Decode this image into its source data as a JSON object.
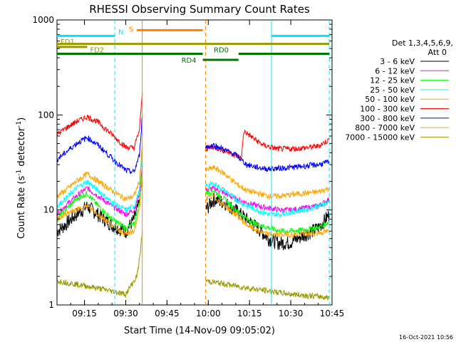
{
  "chart_data": {
    "type": "line",
    "title": "RHESSI Observing Summary Count Rates",
    "xlabel": "Start Time (14-Nov-09 09:05:02)",
    "ylabel": "Count Rate (s",
    "ylabel_sup1": "-1",
    "ylabel_mid": " detector",
    "ylabel_sup2": "-1",
    "ylabel_end": ")",
    "yscale": "log",
    "xlim": [
      "09:05",
      "10:45"
    ],
    "ylim": [
      1,
      1000
    ],
    "x_ticks": [
      "09:15",
      "09:30",
      "09:45",
      "10:00",
      "10:15",
      "10:30",
      "10:45"
    ],
    "y_ticks": [
      "1",
      "10",
      "100",
      "1000"
    ],
    "legend": {
      "position": "right",
      "header_line1": "Det 1,3,4,5,6,9,",
      "header_line2": "Att 0"
    },
    "series": [
      {
        "name": "3 - 6 keV",
        "color": "#000000",
        "x": [
          "09:05",
          "09:08",
          "09:12",
          "09:16",
          "09:20",
          "09:25",
          "09:30",
          "09:33",
          "09:35",
          "09:36",
          "09:59",
          "10:02",
          "10:06",
          "10:10",
          "10:14",
          "10:18",
          "10:22",
          "10:26",
          "10:30",
          "10:35",
          "10:40",
          "10:44"
        ],
        "values": [
          6,
          7,
          9,
          11,
          9,
          7,
          6,
          8,
          12,
          20,
          10,
          13,
          12,
          10,
          8,
          6.5,
          5,
          4.5,
          4.6,
          5.5,
          6.5,
          9
        ]
      },
      {
        "name": "6 - 12 keV",
        "color": "#ff00ff",
        "x": [
          "09:05",
          "09:08",
          "09:12",
          "09:16",
          "09:20",
          "09:25",
          "09:30",
          "09:33",
          "09:35",
          "09:36",
          "09:59",
          "10:02",
          "10:06",
          "10:10",
          "10:14",
          "10:18",
          "10:22",
          "10:26",
          "10:30",
          "10:35",
          "10:40",
          "10:44"
        ],
        "values": [
          9,
          11,
          14,
          17,
          14,
          11,
          9,
          10,
          15,
          30,
          16,
          17,
          15,
          13,
          12,
          11,
          10.5,
          10,
          10,
          10.5,
          11,
          13
        ]
      },
      {
        "name": "12 - 25 keV",
        "color": "#00ff00",
        "x": [
          "09:05",
          "09:08",
          "09:12",
          "09:16",
          "09:20",
          "09:25",
          "09:30",
          "09:33",
          "09:35",
          "09:36",
          "09:59",
          "10:02",
          "10:06",
          "10:10",
          "10:14",
          "10:18",
          "10:22",
          "10:26",
          "10:30",
          "10:35",
          "10:40",
          "10:44"
        ],
        "values": [
          8,
          10,
          13,
          15,
          11,
          8,
          6.5,
          7,
          12,
          28,
          15,
          16,
          13,
          10,
          8,
          7,
          6.5,
          6,
          6,
          6.2,
          6.5,
          7.5
        ]
      },
      {
        "name": "25 - 50 keV",
        "color": "#00ffff",
        "x": [
          "09:05",
          "09:08",
          "09:12",
          "09:16",
          "09:20",
          "09:25",
          "09:30",
          "09:33",
          "09:35",
          "09:36",
          "09:59",
          "10:02",
          "10:06",
          "10:10",
          "10:14",
          "10:18",
          "10:22",
          "10:26",
          "10:30",
          "10:35",
          "10:40",
          "10:44"
        ],
        "values": [
          11,
          13,
          17,
          20,
          16,
          12,
          10,
          11,
          16,
          40,
          18,
          19,
          16,
          13,
          11,
          10,
          9,
          9,
          9.5,
          10,
          11,
          12
        ]
      },
      {
        "name": "50 - 100 keV",
        "color": "#ffa500",
        "x": [
          "09:05",
          "09:08",
          "09:12",
          "09:16",
          "09:20",
          "09:25",
          "09:30",
          "09:33",
          "09:35",
          "09:36",
          "09:59",
          "10:02",
          "10:06",
          "10:10",
          "10:14",
          "10:18",
          "10:22",
          "10:26",
          "10:30",
          "10:35",
          "10:40",
          "10:44"
        ],
        "values": [
          14,
          16,
          20,
          24,
          20,
          16,
          13,
          14,
          20,
          50,
          26,
          28,
          24,
          19,
          16,
          15,
          14,
          14,
          14.5,
          15,
          15.5,
          17
        ]
      },
      {
        "name": "100 - 300 keV",
        "color": "#ff0000",
        "x": [
          "09:05",
          "09:08",
          "09:12",
          "09:16",
          "09:20",
          "09:25",
          "09:30",
          "09:33",
          "09:35",
          "09:36",
          "09:59",
          "10:02",
          "10:06",
          "10:10",
          "10:12",
          "10:13",
          "10:16",
          "10:20",
          "10:25",
          "10:30",
          "10:35",
          "10:40",
          "10:44"
        ],
        "values": [
          62,
          72,
          85,
          96,
          84,
          62,
          46,
          45,
          70,
          170,
          44,
          46,
          42,
          38,
          35,
          68,
          58,
          48,
          44,
          44,
          45,
          47,
          55
        ]
      },
      {
        "name": "300 - 800 keV",
        "color": "#0000ff",
        "x": [
          "09:05",
          "09:08",
          "09:12",
          "09:16",
          "09:20",
          "09:25",
          "09:30",
          "09:33",
          "09:35",
          "09:36",
          "09:59",
          "10:02",
          "10:06",
          "10:10",
          "10:14",
          "10:18",
          "10:22",
          "10:26",
          "10:30",
          "10:35",
          "10:40",
          "10:44"
        ],
        "values": [
          34,
          40,
          50,
          58,
          48,
          35,
          26,
          25,
          38,
          100,
          46,
          48,
          43,
          38,
          30,
          28,
          27,
          27.5,
          28,
          29,
          30,
          32
        ]
      },
      {
        "name": "800 - 7000 keV",
        "color": "#ffa500",
        "x": [
          "09:05",
          "09:08",
          "09:12",
          "09:16",
          "09:20",
          "09:25",
          "09:30",
          "09:33",
          "09:35",
          "09:36",
          "09:59",
          "10:02",
          "10:06",
          "10:10",
          "10:14",
          "10:18",
          "10:22",
          "10:26",
          "10:30",
          "10:35",
          "10:40",
          "10:44"
        ],
        "values": [
          8,
          9,
          10,
          11,
          9,
          7,
          5.5,
          6,
          10,
          25,
          13,
          14,
          11,
          9,
          7,
          6,
          5.5,
          5.5,
          5.5,
          5.6,
          5.7,
          6
        ]
      },
      {
        "name": "7000 - 15000 keV",
        "color": "#999900",
        "x": [
          "09:05",
          "09:20",
          "09:30",
          "09:34",
          "09:35",
          "09:36",
          "09:59",
          "10:15",
          "10:30",
          "10:44"
        ],
        "values": [
          1.8,
          1.5,
          1.3,
          2,
          3,
          6,
          1.8,
          1.5,
          1.3,
          1.2
        ]
      }
    ],
    "annotations": [
      {
        "label": "N",
        "color": "#00e5ff",
        "segments": [
          [
            "09:05",
            "09:26"
          ],
          [
            "10:23",
            "10:44"
          ]
        ],
        "level": 680
      },
      {
        "label": "S",
        "color": "#ff8000",
        "segments": [
          [
            "09:34",
            "09:58"
          ]
        ],
        "level": 780
      },
      {
        "label": "FD1",
        "color": "#999900",
        "segments": [
          [
            "09:05",
            "09:16"
          ]
        ],
        "level": 520
      },
      {
        "label": "FD2",
        "color": "#999900",
        "segments": [
          [
            "09:05",
            "10:44"
          ]
        ],
        "level": 560
      },
      {
        "label": "RD0",
        "color": "#007700",
        "segments": [
          [
            "09:05",
            "09:58"
          ],
          [
            "10:11",
            "10:44"
          ]
        ],
        "level": 440
      },
      {
        "label": "RD4",
        "color": "#007700",
        "segments": [
          [
            "09:58",
            "10:11"
          ]
        ],
        "level": 380
      }
    ],
    "vlines": [
      {
        "x": "09:26",
        "color": "#00e5ff",
        "style": "dashed"
      },
      {
        "x": "09:36",
        "color": "#ff8000",
        "style": "solid"
      },
      {
        "x": "09:59",
        "color": "#ff8000",
        "style": "dashed"
      },
      {
        "x": "10:23",
        "color": "#00e5ff",
        "style": "solid"
      },
      {
        "x": "10:44",
        "color": "#00e5ff",
        "style": "dashed"
      }
    ],
    "footer_date": "16-Oct-2021 10:56"
  }
}
